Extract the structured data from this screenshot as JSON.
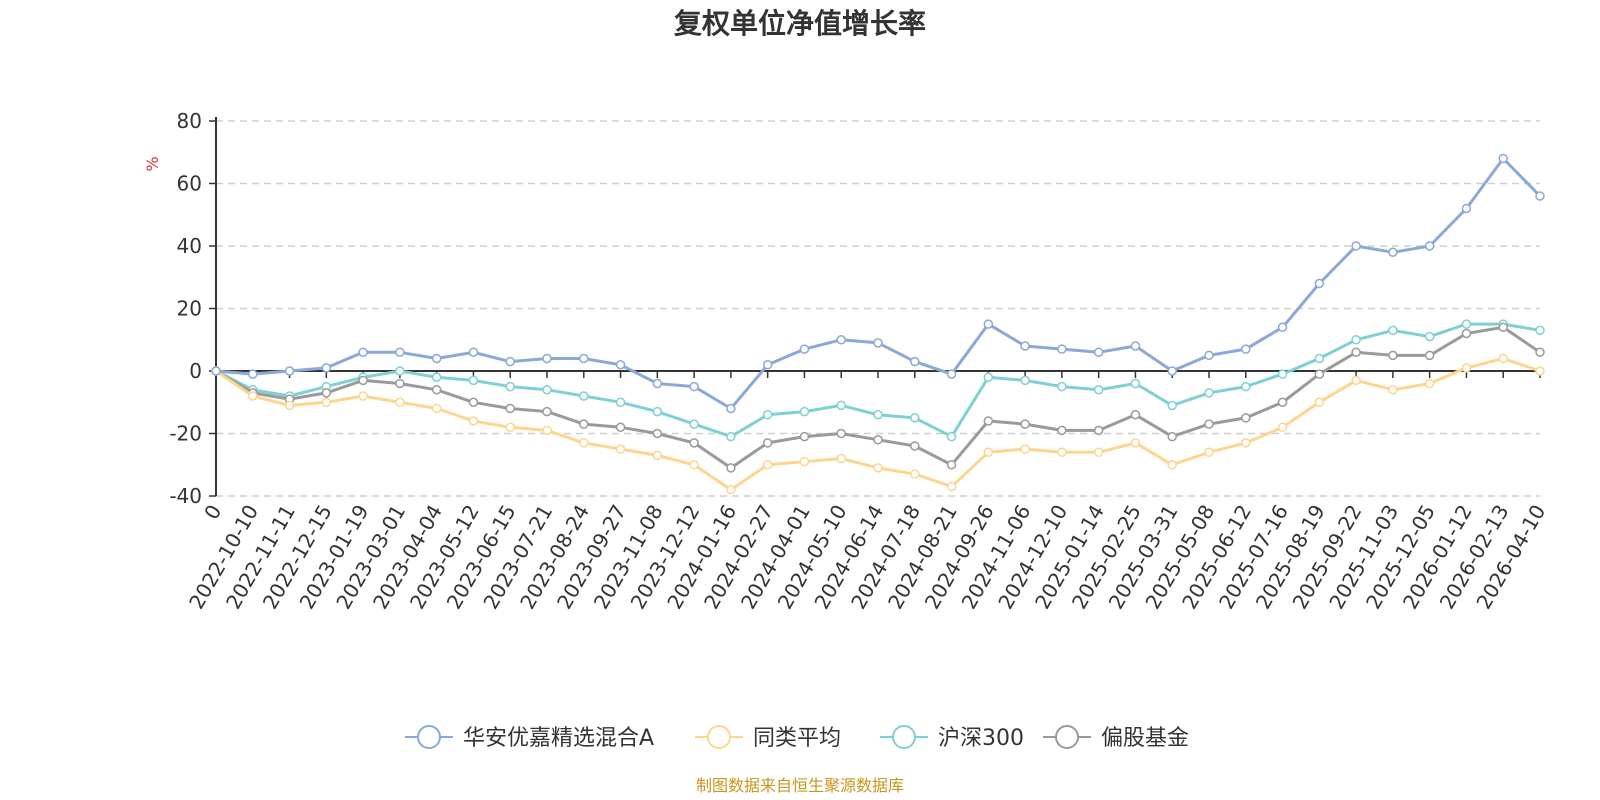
{
  "chart_data": {
    "type": "line",
    "title": "复权单位净值增长率",
    "y_unit": "%",
    "ylim": [
      -40,
      80
    ],
    "y_ticks": [
      80,
      60,
      40,
      20,
      0,
      -20,
      -40
    ],
    "x_ticks": [
      "0",
      "2022-10-10",
      "2022-11-11",
      "2022-12-15",
      "2023-01-19",
      "2023-03-01",
      "2023-04-04",
      "2023-05-12",
      "2023-06-15",
      "2023-07-21",
      "2023-08-24",
      "2023-09-27",
      "2023-11-08",
      "2023-12-12",
      "2024-01-16",
      "2024-02-27",
      "2024-04-01",
      "2024-05-10",
      "2024-06-14",
      "2024-07-18",
      "2024-08-21",
      "2024-09-26",
      "2024-11-06",
      "2024-12-10",
      "2025-01-14",
      "2025-02-25",
      "2025-03-31",
      "2025-05-08",
      "2025-06-12",
      "2025-07-16",
      "2025-08-19",
      "2025-09-22",
      "2025-11-03",
      "2025-12-05",
      "2026-01-12",
      "2026-02-13",
      "2026-04-10"
    ],
    "grid": "horizontal dashed",
    "legend_position": "bottom",
    "series": [
      {
        "name": "华安优嘉精选混合A",
        "color": "#8aa8d8",
        "values": [
          0,
          -1,
          0,
          1,
          6,
          6,
          4,
          6,
          3,
          4,
          4,
          2,
          -4,
          -5,
          -12,
          2,
          7,
          10,
          9,
          3,
          -1,
          15,
          8,
          7,
          6,
          8,
          0,
          5,
          7,
          14,
          28,
          40,
          38,
          40,
          52,
          68,
          56
        ]
      },
      {
        "name": "同类平均",
        "color": "#fdd58f",
        "values": [
          0,
          -8,
          -11,
          -10,
          -8,
          -10,
          -12,
          -16,
          -18,
          -19,
          -23,
          -25,
          -27,
          -30,
          -38,
          -30,
          -29,
          -28,
          -31,
          -33,
          -37,
          -26,
          -25,
          -26,
          -26,
          -23,
          -30,
          -26,
          -23,
          -18,
          -10,
          -3,
          -6,
          -4,
          1,
          4,
          0
        ]
      },
      {
        "name": "沪深300",
        "color": "#7fd0d4",
        "values": [
          0,
          -6,
          -8,
          -5,
          -2,
          0,
          -2,
          -3,
          -5,
          -6,
          -8,
          -10,
          -13,
          -17,
          -21,
          -14,
          -13,
          -11,
          -14,
          -15,
          -21,
          -2,
          -3,
          -5,
          -6,
          -4,
          -11,
          -7,
          -5,
          -1,
          4,
          10,
          13,
          11,
          15,
          15,
          13
        ]
      },
      {
        "name": "偏股基金",
        "color": "#9a9a9a",
        "values": [
          0,
          -7,
          -9,
          -7,
          -3,
          -4,
          -6,
          -10,
          -12,
          -13,
          -17,
          -18,
          -20,
          -23,
          -31,
          -23,
          -21,
          -20,
          -22,
          -24,
          -30,
          -16,
          -17,
          -19,
          -19,
          -14,
          -21,
          -17,
          -15,
          -10,
          -1,
          6,
          5,
          5,
          12,
          14,
          6
        ]
      }
    ]
  },
  "source_note": "制图数据来自恒生聚源数据库"
}
